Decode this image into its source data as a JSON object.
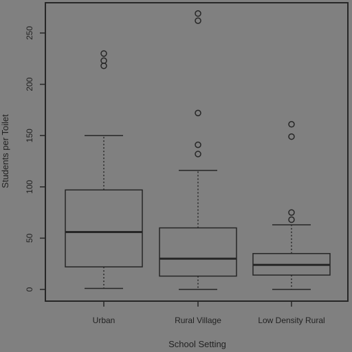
{
  "chart_data": {
    "type": "box",
    "xlabel": "School Setting",
    "ylabel": "Students per Toilet",
    "ylim": [
      -10,
      280
    ],
    "yticks": [
      0,
      50,
      100,
      150,
      200,
      250
    ],
    "grid": false,
    "legend": "none",
    "categories": [
      "Urban",
      "Rural Village",
      "Low Density Rural"
    ],
    "boxes": [
      {
        "category": "Urban",
        "min": 1,
        "q1": 22,
        "median": 56,
        "q3": 97,
        "max": 150,
        "outliers": [
          218,
          223,
          230
        ]
      },
      {
        "category": "Rural Village",
        "min": 0,
        "q1": 13,
        "median": 30,
        "q3": 60,
        "max": 116,
        "outliers": [
          132,
          141,
          172,
          262,
          269
        ]
      },
      {
        "category": "Low Density Rural",
        "min": 0,
        "q1": 14,
        "median": 24,
        "q3": 35,
        "max": 63,
        "outliers": [
          68,
          75,
          149,
          161
        ]
      }
    ]
  },
  "colors": {
    "background": "#808080",
    "stroke": "#262626",
    "text": "#222222"
  }
}
